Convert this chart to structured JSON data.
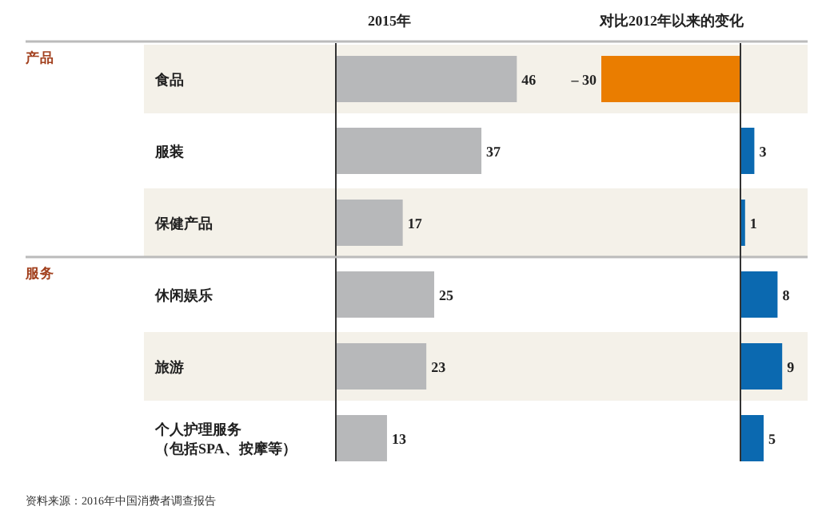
{
  "chart_data": [
    {
      "type": "bar",
      "orientation": "horizontal",
      "title": "2015年",
      "categories": [
        "食品",
        "服装",
        "保健产品",
        "休闲娱乐",
        "旅游",
        "个人护理服务（包括SPA、按摩等）"
      ],
      "values": [
        46,
        37,
        17,
        25,
        23,
        13
      ],
      "color": "#b7b8ba",
      "data_labels": true,
      "annotations": [
        "产品",
        "服务",
        "资料来源：2016年中国消费者调查报告"
      ]
    },
    {
      "type": "bar",
      "orientation": "horizontal",
      "title": "对比2012年以来的变化",
      "values": [
        -30,
        3,
        1,
        8,
        9,
        5
      ],
      "colors": [
        "#ea7d00",
        "#0b69b0",
        "#0b69b0",
        "#0b69b0",
        "#0b69b0",
        "#0b69b0"
      ],
      "value_labels": [
        "– 30",
        "3",
        "1",
        "8",
        "9",
        "5"
      ]
    }
  ]
}
